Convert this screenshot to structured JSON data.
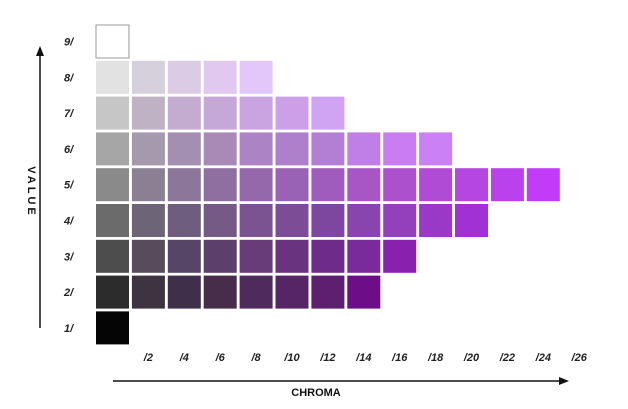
{
  "chart_data": {
    "type": "heatmap",
    "x_axis_title": "CHROMA",
    "y_axis_title": "VALUE",
    "value_labels": [
      "1/",
      "2/",
      "3/",
      "4/",
      "5/",
      "6/",
      "7/",
      "8/",
      "9/"
    ],
    "chroma_labels": [
      "/2",
      "/4",
      "/6",
      "/8",
      "/10",
      "/12",
      "/14",
      "/16",
      "/18",
      "/20",
      "/22",
      "/24",
      "/26"
    ],
    "rows": [
      {
        "value": "9/",
        "swatches": [
          "#ffffff"
        ]
      },
      {
        "value": "8/",
        "swatches": [
          "#e2e2e2",
          "#d6cfdc",
          "#dccbe4",
          "#e0c8ee",
          "#e3c6fa"
        ]
      },
      {
        "value": "7/",
        "swatches": [
          "#c6c6c6",
          "#bfb2c4",
          "#c3acd0",
          "#c6a8d8",
          "#c9a4e0",
          "#cc9fe8",
          "#d0a3f3"
        ]
      },
      {
        "value": "6/",
        "swatches": [
          "#a6a6a6",
          "#a599ae",
          "#a38fb2",
          "#a98ab6",
          "#ac84c6",
          "#ae80cc",
          "#b27fd4",
          "#c07fe6",
          "#c97df0",
          "#cb80f5"
        ]
      },
      {
        "value": "5/",
        "swatches": [
          "#8a8a8a",
          "#8b7f93",
          "#8c7699",
          "#8e6f9f",
          "#9468aa",
          "#9962b2",
          "#a05cbc",
          "#a855c6",
          "#ac50ce",
          "#b04bd6",
          "#b546e0",
          "#bb41ec",
          "#c23bf8"
        ]
      },
      {
        "value": "4/",
        "swatches": [
          "#6b6b6b",
          "#6e6478",
          "#6f5d7f",
          "#765a86",
          "#7a5390",
          "#7c4c96",
          "#7e479f",
          "#8a44ae",
          "#9240bc",
          "#9a38c8",
          "#a231d4"
        ]
      },
      {
        "value": "3/",
        "swatches": [
          "#4d4d4d",
          "#574c5c",
          "#574567",
          "#5d3f6c",
          "#673c78",
          "#6a337f",
          "#6e2b8a",
          "#7a2a9a",
          "#8a20ae"
        ]
      },
      {
        "value": "2/",
        "swatches": [
          "#2c2c2c",
          "#3e3441",
          "#3f2f4a",
          "#482d4b",
          "#4f2a5d",
          "#562566",
          "#5e1f70",
          "#6d0e88"
        ]
      },
      {
        "value": "1/",
        "swatches": [
          "#050505"
        ]
      }
    ]
  }
}
